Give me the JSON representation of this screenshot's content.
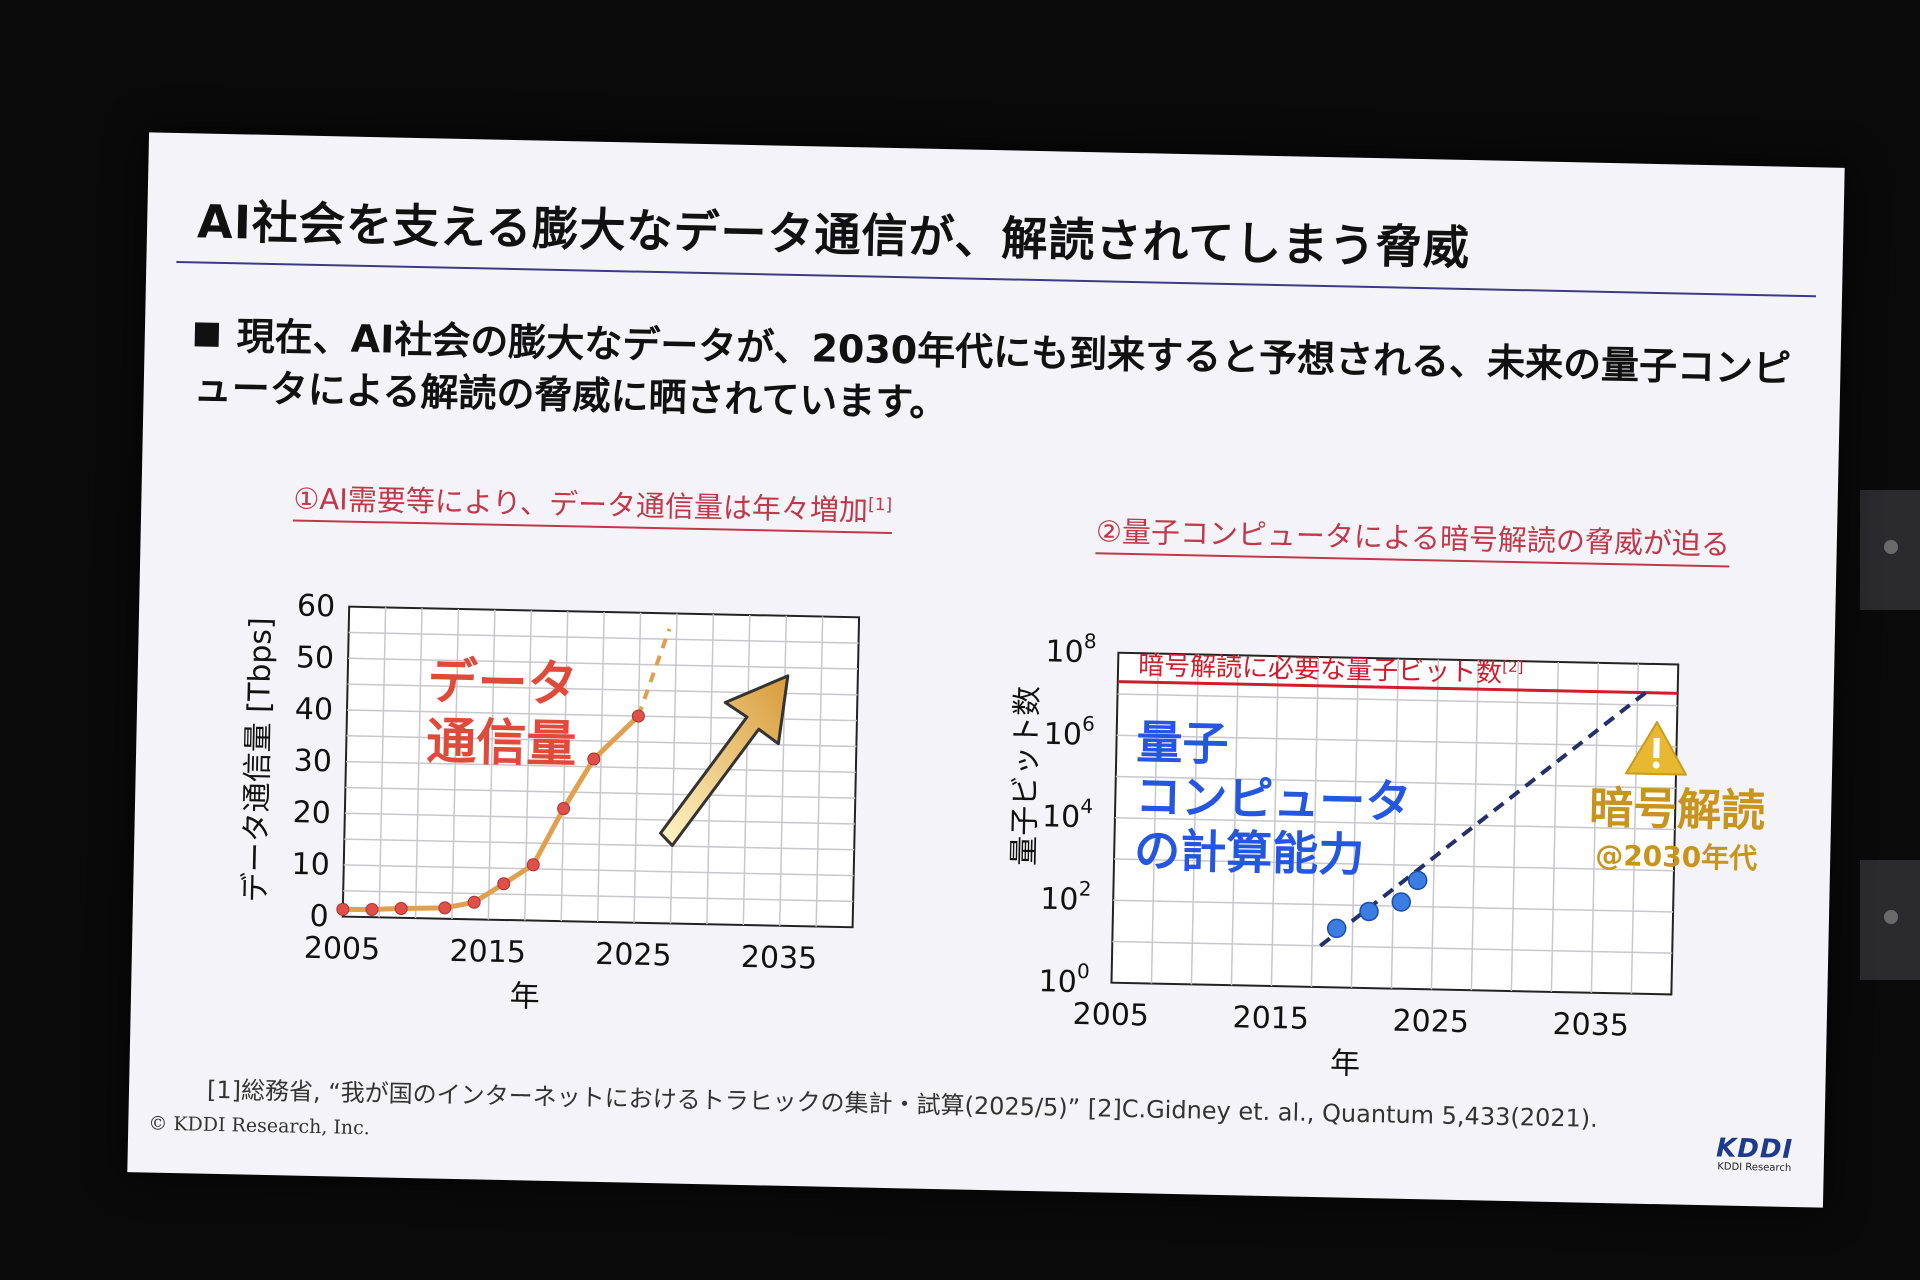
{
  "slide": {
    "title": "AI社会を支える膨大なデータ通信が、解読されてしまう脅威",
    "bullet": "現在、AI社会の膨大なデータが、2030年代にも到来すると予想される、未来の量子コンピュータによる解読の脅威に晒されています。",
    "footnote": "[1]総務省, “我が国のインターネットにおけるトラヒックの集計・試算(2025/5)”  [2]C.Gidney et. al., Quantum 5,433(2021).",
    "copyright": "© KDDI Research, Inc.",
    "logo": {
      "mark": "KDDI",
      "sub": "KDDI Research"
    }
  },
  "chart_data": [
    {
      "type": "line",
      "title": "①AI需要等により、データ通信量は年々増加",
      "title_ref": "[1]",
      "xlabel": "年",
      "ylabel": "データ通信量 [Tbps]",
      "x_ticks": [
        "2005",
        "2015",
        "2025",
        "2035"
      ],
      "y_ticks": [
        "0",
        "10",
        "20",
        "30",
        "40",
        "50",
        "60"
      ],
      "xlim": [
        2005,
        2040
      ],
      "ylim": [
        0,
        60
      ],
      "grid": true,
      "series": [
        {
          "color": "#e0a050",
          "marker_color": "#e0504a",
          "x": [
            2005,
            2007,
            2009,
            2012,
            2014,
            2016,
            2018,
            2020,
            2022,
            2025
          ],
          "y": [
            1.4,
            1.5,
            1.8,
            2.1,
            3.3,
            7.0,
            10.8,
            21.8,
            31.5,
            40.0
          ]
        }
      ],
      "projection": {
        "x": [
          2025,
          2027
        ],
        "y": [
          40.0,
          57.0
        ]
      },
      "annotation": {
        "text": [
          "データ",
          "通信量"
        ],
        "color": "#e04a3a"
      },
      "trend_arrow": true
    },
    {
      "type": "scatter",
      "title": "②量子コンピュータによる暗号解読の脅威が迫る",
      "xlabel": "年",
      "ylabel": "量子ビット数",
      "y_scale": "log",
      "x_ticks": [
        "2005",
        "2015",
        "2025",
        "2035"
      ],
      "y_ticks": [
        {
          "base": "10",
          "exp": "0"
        },
        {
          "base": "10",
          "exp": "2"
        },
        {
          "base": "10",
          "exp": "4"
        },
        {
          "base": "10",
          "exp": "6"
        },
        {
          "base": "10",
          "exp": "8"
        }
      ],
      "xlim": [
        2005,
        2040
      ],
      "ylim_exp": [
        0,
        8
      ],
      "grid": true,
      "series": [
        {
          "color": "#3b7de0",
          "x": [
            2019,
            2021,
            2023,
            2024
          ],
          "y": [
            27,
            72,
            127,
            433
          ]
        }
      ],
      "trend": {
        "x": [
          2018,
          2038
        ],
        "y": [
          10,
          20000000
        ],
        "color": "#23306a"
      },
      "threshold": {
        "y": 20000000,
        "label": "暗号解読に必要な量子ビット数",
        "ref": "[2]",
        "color": "#d01c2c"
      },
      "annotation_capability": {
        "text": [
          "量子",
          "コンピュータ",
          "の計算能力"
        ],
        "color": "#2456e0"
      },
      "annotation_threat": {
        "text": "暗号解読",
        "sub": "@2030年代",
        "color": "#c8941c"
      },
      "warning_icon": "warning-triangle-icon"
    }
  ]
}
